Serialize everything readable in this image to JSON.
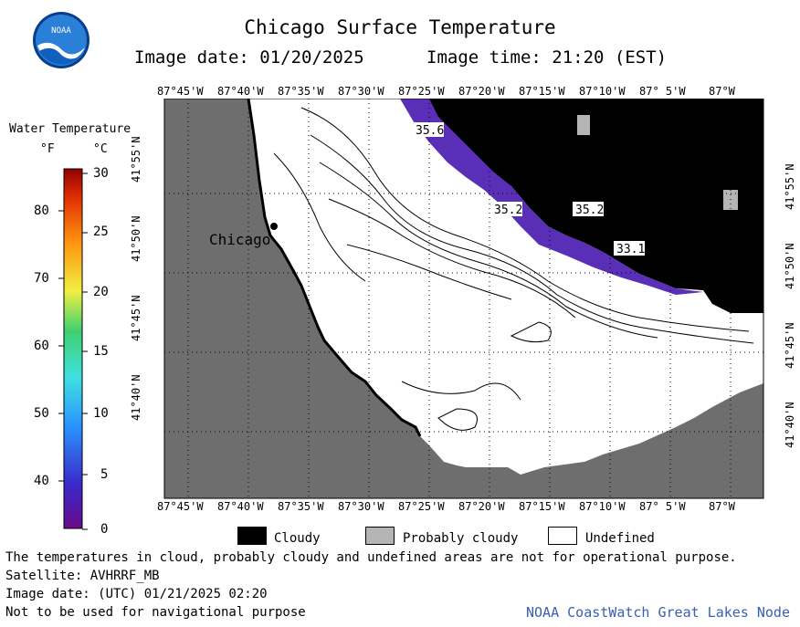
{
  "header": {
    "title": "Chicago Surface Temperature",
    "image_date_label": "Image date: 01/20/2025",
    "image_time_label": "Image time: 21:20 (EST)"
  },
  "logo": {
    "text": "NOAA",
    "icon": "noaa-logo"
  },
  "axes": {
    "top_ticks": [
      "87°45'W",
      "87°40'W",
      "87°35'W",
      "87°30'W",
      "87°25'W",
      "87°20'W",
      "87°15'W",
      "87°10'W",
      "87° 5'W",
      "87°W"
    ],
    "bottom_ticks": [
      "87°45'W",
      "87°40'W",
      "87°35'W",
      "87°30'W",
      "87°25'W",
      "87°20'W",
      "87°15'W",
      "87°10'W",
      "87° 5'W",
      "87°W"
    ],
    "left_ticks": [
      "41°55'N",
      "41°50'N",
      "41°45'N",
      "41°40'N"
    ],
    "right_ticks": [
      "41°55'N",
      "41°50'N",
      "41°45'N",
      "41°40'N"
    ]
  },
  "map": {
    "city_label": "Chicago",
    "contour_labels": [
      "35.6",
      "35.2",
      "35.2",
      "33.1"
    ],
    "colors": {
      "land": "#6e6e6e",
      "water": "#ffffff",
      "cloud": "#000000",
      "probably_cloudy": "#b4b4b4",
      "warm_water": "#5a2fb8"
    }
  },
  "colorbar": {
    "title": "Water Temperature",
    "unit_f": "°F",
    "unit_c": "°C",
    "f_labels": [
      "80",
      "70",
      "60",
      "50",
      "40"
    ],
    "c_labels": [
      "30",
      "25",
      "20",
      "15",
      "10",
      "5",
      "0"
    ]
  },
  "key": {
    "cloudy": "Cloudy",
    "probably_cloudy": "Probably cloudy",
    "undefined": "Undefined"
  },
  "notes": {
    "disclaimer": "The temperatures in cloud, probably cloudy and undefined areas are not for operational purpose.",
    "satellite": "Satellite: AVHRRF_MB",
    "utc_date": "Image date: (UTC) 01/21/2025  02:20",
    "navigation": "Not to be used for navigational purpose",
    "node": "NOAA CoastWatch Great Lakes Node"
  }
}
